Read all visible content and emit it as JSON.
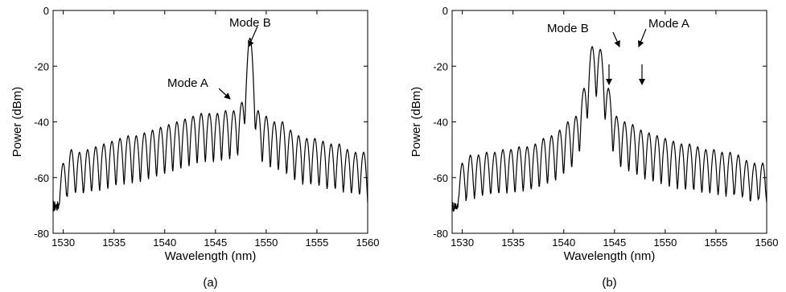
{
  "chart_data": [
    {
      "type": "line",
      "caption": "(a)",
      "xlabel": "Wavelength (nm)",
      "ylabel": "Power (dBm)",
      "xlim": [
        1529,
        1560
      ],
      "ylim": [
        -80,
        0
      ],
      "xticks": [
        "1530",
        "1535",
        "1540",
        "1545",
        "1550",
        "1555",
        "1560"
      ],
      "yticks": [
        "0",
        "-20",
        "-40",
        "-60",
        "-80"
      ],
      "grid": false,
      "legend": "none",
      "baseline_dbm": -70,
      "peak_spacing_nm": 0.8,
      "peaks_x": [
        1530.0,
        1530.8,
        1531.6,
        1532.4,
        1533.2,
        1534.0,
        1534.8,
        1535.6,
        1536.4,
        1537.2,
        1538.0,
        1538.8,
        1539.6,
        1540.4,
        1541.2,
        1542.0,
        1542.8,
        1543.6,
        1544.4,
        1545.2,
        1546.0,
        1546.8,
        1547.6,
        1548.4,
        1549.2,
        1550.0,
        1550.8,
        1551.6,
        1552.4,
        1553.2,
        1554.0,
        1554.8,
        1555.6,
        1556.4,
        1557.2,
        1558.0,
        1558.8,
        1559.6
      ],
      "peaks_y": [
        -55,
        -50,
        -51,
        -50,
        -49,
        -48,
        -47,
        -46,
        -45,
        -45,
        -44,
        -43,
        -42,
        -41,
        -40,
        -39,
        -38,
        -37,
        -37,
        -37,
        -36,
        -36,
        -33,
        -10,
        -36,
        -38,
        -40,
        -40,
        -43,
        -45,
        -46,
        -46,
        -47,
        -48,
        -48,
        -50,
        -51,
        -51
      ],
      "annotations": [
        {
          "text": "Mode B",
          "x": 1547.6,
          "y": -10
        },
        {
          "text": "Mode A",
          "x": 1546.8,
          "y": -33
        }
      ]
    },
    {
      "type": "line",
      "caption": "(b)",
      "xlabel": "Wavelength (nm)",
      "ylabel": "Power (dBm)",
      "xlim": [
        1529,
        1560
      ],
      "ylim": [
        -80,
        0
      ],
      "xticks": [
        "1530",
        "1535",
        "1540",
        "1545",
        "1550",
        "1555",
        "1560"
      ],
      "yticks": [
        "0",
        "-20",
        "-40",
        "-60",
        "-80"
      ],
      "grid": false,
      "legend": "none",
      "baseline_dbm": -70,
      "peak_spacing_nm": 0.8,
      "peaks_x": [
        1530.0,
        1530.8,
        1531.6,
        1532.4,
        1533.2,
        1534.0,
        1534.8,
        1535.6,
        1536.4,
        1537.2,
        1538.0,
        1538.8,
        1539.6,
        1540.4,
        1541.2,
        1542.0,
        1542.8,
        1543.6,
        1544.4,
        1545.2,
        1546.0,
        1546.8,
        1547.6,
        1548.4,
        1549.2,
        1550.0,
        1550.8,
        1551.6,
        1552.4,
        1553.2,
        1554.0,
        1554.8,
        1555.6,
        1556.4,
        1557.2,
        1558.0,
        1558.8,
        1559.6
      ],
      "peaks_y": [
        -55,
        -52,
        -52,
        -51,
        -51,
        -50,
        -50,
        -49,
        -49,
        -48,
        -46,
        -45,
        -43,
        -40,
        -38,
        -28,
        -13,
        -14,
        -28,
        -38,
        -40,
        -41,
        -43,
        -44,
        -45,
        -46,
        -47,
        -48,
        -48,
        -49,
        -50,
        -50,
        -51,
        -51,
        -52,
        -54,
        -55,
        -55
      ],
      "annotations": [
        {
          "text": "Mode B",
          "x": 1545.6,
          "y": -13
        },
        {
          "text": "Mode A",
          "x": 1546.6,
          "y": -14
        }
      ]
    }
  ]
}
